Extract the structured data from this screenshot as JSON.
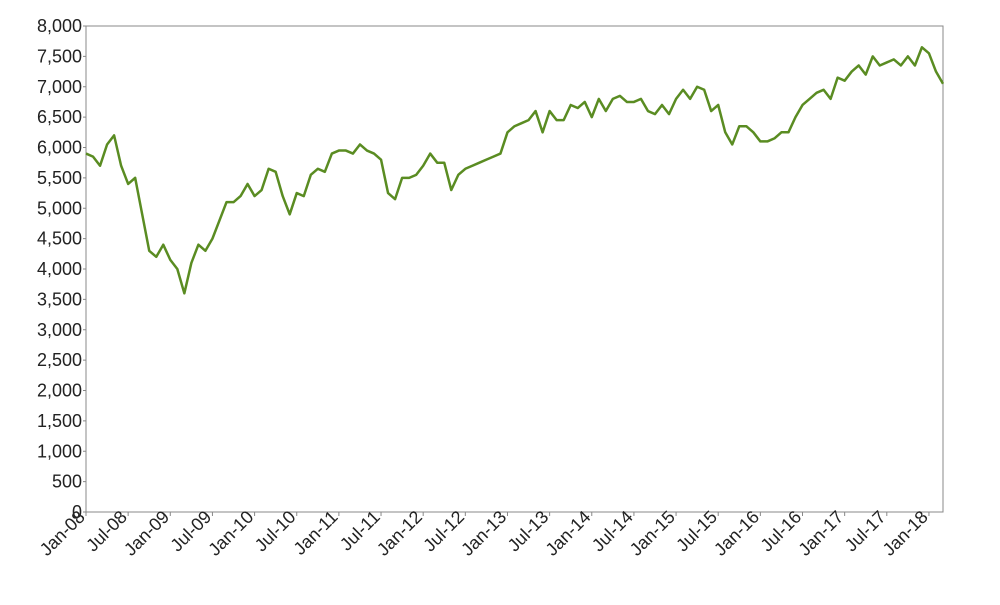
{
  "chart_data": {
    "type": "line",
    "x": [
      "2008-01",
      "2008-02",
      "2008-03",
      "2008-04",
      "2008-05",
      "2008-06",
      "2008-07",
      "2008-08",
      "2008-09",
      "2008-10",
      "2008-11",
      "2008-12",
      "2009-01",
      "2009-02",
      "2009-03",
      "2009-04",
      "2009-05",
      "2009-06",
      "2009-07",
      "2009-08",
      "2009-09",
      "2009-10",
      "2009-11",
      "2009-12",
      "2010-01",
      "2010-02",
      "2010-03",
      "2010-04",
      "2010-05",
      "2010-06",
      "2010-07",
      "2010-08",
      "2010-09",
      "2010-10",
      "2010-11",
      "2010-12",
      "2011-01",
      "2011-02",
      "2011-03",
      "2011-04",
      "2011-05",
      "2011-06",
      "2011-07",
      "2011-08",
      "2011-09",
      "2011-10",
      "2011-11",
      "2011-12",
      "2012-01",
      "2012-02",
      "2012-03",
      "2012-04",
      "2012-05",
      "2012-06",
      "2012-07",
      "2012-08",
      "2012-09",
      "2012-10",
      "2012-11",
      "2012-12",
      "2013-01",
      "2013-02",
      "2013-03",
      "2013-04",
      "2013-05",
      "2013-06",
      "2013-07",
      "2013-08",
      "2013-09",
      "2013-10",
      "2013-11",
      "2013-12",
      "2014-01",
      "2014-02",
      "2014-03",
      "2014-04",
      "2014-05",
      "2014-06",
      "2014-07",
      "2014-08",
      "2014-09",
      "2014-10",
      "2014-11",
      "2014-12",
      "2015-01",
      "2015-02",
      "2015-03",
      "2015-04",
      "2015-05",
      "2015-06",
      "2015-07",
      "2015-08",
      "2015-09",
      "2015-10",
      "2015-11",
      "2015-12",
      "2016-01",
      "2016-02",
      "2016-03",
      "2016-04",
      "2016-05",
      "2016-06",
      "2016-07",
      "2016-08",
      "2016-09",
      "2016-10",
      "2016-11",
      "2016-12",
      "2017-01",
      "2017-02",
      "2017-03",
      "2017-04",
      "2017-05",
      "2017-06",
      "2017-07",
      "2017-08",
      "2017-09",
      "2017-10",
      "2017-11",
      "2017-12",
      "2018-01",
      "2018-02",
      "2018-03"
    ],
    "series": [
      {
        "color": "#5a8c22",
        "values": [
          5900,
          5850,
          5700,
          6050,
          6200,
          5700,
          5400,
          5500,
          4900,
          4300,
          4200,
          4400,
          4150,
          4000,
          3600,
          4100,
          4400,
          4300,
          4500,
          4800,
          5100,
          5100,
          5200,
          5400,
          5200,
          5300,
          5650,
          5600,
          5200,
          4900,
          5250,
          5200,
          5550,
          5650,
          5600,
          5900,
          5950,
          5950,
          5900,
          6050,
          5950,
          5900,
          5800,
          5250,
          5150,
          5500,
          5500,
          5550,
          5700,
          5900,
          5750,
          5750,
          5300,
          5550,
          5650,
          5700,
          5750,
          5800,
          5850,
          5900,
          6250,
          6350,
          6400,
          6450,
          6600,
          6250,
          6600,
          6450,
          6450,
          6700,
          6650,
          6750,
          6500,
          6800,
          6600,
          6800,
          6850,
          6750,
          6750,
          6800,
          6600,
          6550,
          6700,
          6550,
          6800,
          6950,
          6800,
          7000,
          6950,
          6600,
          6700,
          6250,
          6050,
          6350,
          6350,
          6250,
          6100,
          6100,
          6150,
          6250,
          6250,
          6500,
          6700,
          6800,
          6900,
          6950,
          6800,
          7150,
          7100,
          7250,
          7350,
          7200,
          7500,
          7350,
          7400,
          7450,
          7350,
          7500,
          7350,
          7650,
          7550,
          7250,
          7050
        ]
      }
    ],
    "xlim": [
      "2008-01",
      "2018-03"
    ],
    "xticks": [
      {
        "value": "2008-01",
        "label": "Jan-08"
      },
      {
        "value": "2008-07",
        "label": "Jul-08"
      },
      {
        "value": "2009-01",
        "label": "Jan-09"
      },
      {
        "value": "2009-07",
        "label": "Jul-09"
      },
      {
        "value": "2010-01",
        "label": "Jan-10"
      },
      {
        "value": "2010-07",
        "label": "Jul-10"
      },
      {
        "value": "2011-01",
        "label": "Jan-11"
      },
      {
        "value": "2011-07",
        "label": "Jul-11"
      },
      {
        "value": "2012-01",
        "label": "Jan-12"
      },
      {
        "value": "2012-07",
        "label": "Jul-12"
      },
      {
        "value": "2013-01",
        "label": "Jan-13"
      },
      {
        "value": "2013-07",
        "label": "Jul-13"
      },
      {
        "value": "2014-01",
        "label": "Jan-14"
      },
      {
        "value": "2014-07",
        "label": "Jul-14"
      },
      {
        "value": "2015-01",
        "label": "Jan-15"
      },
      {
        "value": "2015-07",
        "label": "Jul-15"
      },
      {
        "value": "2016-01",
        "label": "Jan-16"
      },
      {
        "value": "2016-07",
        "label": "Jul-16"
      },
      {
        "value": "2017-01",
        "label": "Jan-17"
      },
      {
        "value": "2017-07",
        "label": "Jul-17"
      },
      {
        "value": "2018-01",
        "label": "Jan-18"
      }
    ],
    "ylim": [
      0,
      8000
    ],
    "yticks": [
      0,
      500,
      {
        "value": 1000,
        "label": "1,000"
      },
      {
        "value": 1500,
        "label": "1,500"
      },
      {
        "value": 2000,
        "label": "2,000"
      },
      {
        "value": 2500,
        "label": "2,500"
      },
      {
        "value": 3000,
        "label": "3,000"
      },
      {
        "value": 3500,
        "label": "3,500"
      },
      {
        "value": 4000,
        "label": "4,000"
      },
      {
        "value": 4500,
        "label": "4,500"
      },
      {
        "value": 5000,
        "label": "5,000"
      },
      {
        "value": 5500,
        "label": "5,500"
      },
      {
        "value": 6000,
        "label": "6,000"
      },
      {
        "value": 6500,
        "label": "6,500"
      },
      {
        "value": 7000,
        "label": "7,000"
      },
      {
        "value": 7500,
        "label": "7,500"
      },
      {
        "value": 8000,
        "label": "8,000"
      }
    ],
    "grid": false
  }
}
